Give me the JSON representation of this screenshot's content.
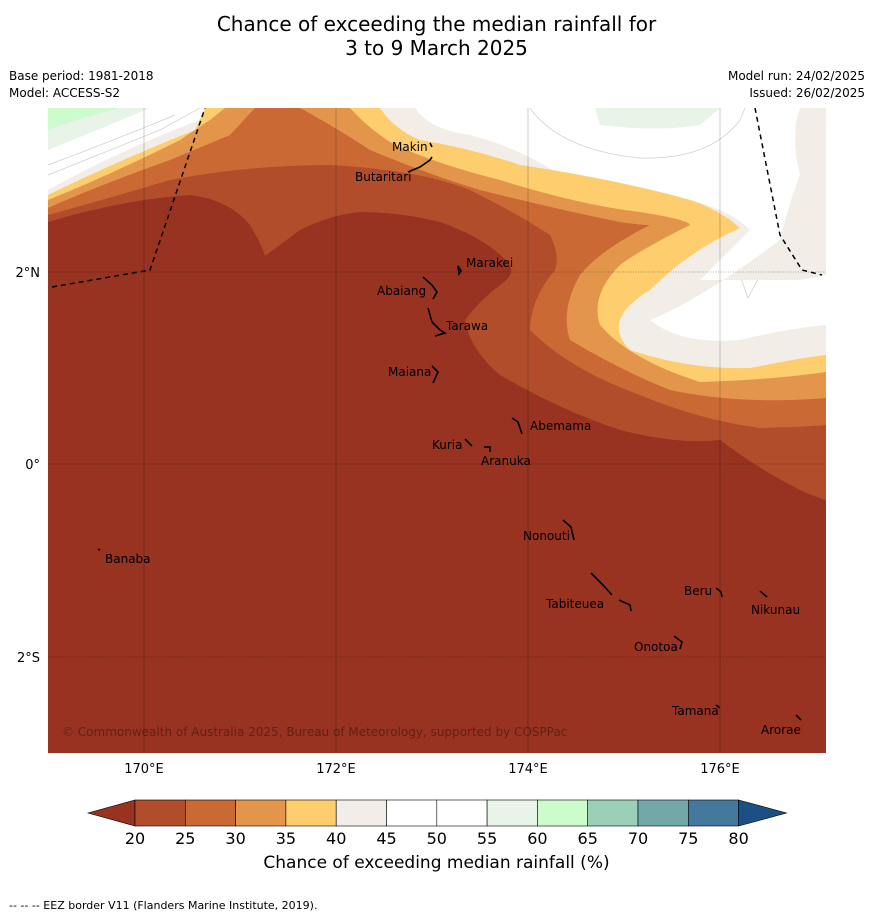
{
  "title_line1": "Chance of exceeding the median rainfall for",
  "title_line2": "3 to 9 March 2025",
  "base_period": "Base period: 1981-2018",
  "model": "Model: ACCESS-S2",
  "model_run": "Model run: 24/02/2025",
  "issued": "Issued: 26/02/2025",
  "copyright": "© Commonwealth of Australia 2025, Bureau of Meteorology, supported by COSPPac",
  "colorbar_title": "Chance of exceeding median rainfall (%)",
  "footnote": "--  --  -- EEZ border V11 (Flanders Marine Institute, 2019).",
  "lon_labels": [
    "170°E",
    "172°E",
    "174°E",
    "176°E"
  ],
  "lat_labels": [
    "2°N",
    "0°",
    "2°S"
  ],
  "colorbar": {
    "ticks": [
      "20",
      "25",
      "30",
      "35",
      "40",
      "45",
      "50",
      "55",
      "60",
      "65",
      "70",
      "75",
      "80"
    ],
    "colors": [
      "#983221",
      "#b24d2c",
      "#cb6934",
      "#e3964b",
      "#fdcd6e",
      "#f2ede6",
      "#ffffff",
      "#ffffff",
      "#e8f4e8",
      "#ccfccc",
      "#9ccfb8",
      "#73a8a8",
      "#44789c",
      "#1c5084"
    ]
  },
  "places": [
    {
      "name": "Makin",
      "id": "makin"
    },
    {
      "name": "Butaritari",
      "id": "butaritari"
    },
    {
      "name": "Marakei",
      "id": "marakei"
    },
    {
      "name": "Abaiang",
      "id": "abaiang"
    },
    {
      "name": "Tarawa",
      "id": "tarawa"
    },
    {
      "name": "Maiana",
      "id": "maiana"
    },
    {
      "name": "Abemama",
      "id": "abemama"
    },
    {
      "name": "Kuria",
      "id": "kuria"
    },
    {
      "name": "Aranuka",
      "id": "aranuka"
    },
    {
      "name": "Nonouti",
      "id": "nonouti"
    },
    {
      "name": "Banaba",
      "id": "banaba"
    },
    {
      "name": "Beru",
      "id": "beru"
    },
    {
      "name": "Tabiteuea",
      "id": "tabiteuea"
    },
    {
      "name": "Nikunau",
      "id": "nikunau"
    },
    {
      "name": "Onotoa",
      "id": "onotoa"
    },
    {
      "name": "Tamana",
      "id": "tamana"
    },
    {
      "name": "Arorae",
      "id": "arorae"
    }
  ]
}
